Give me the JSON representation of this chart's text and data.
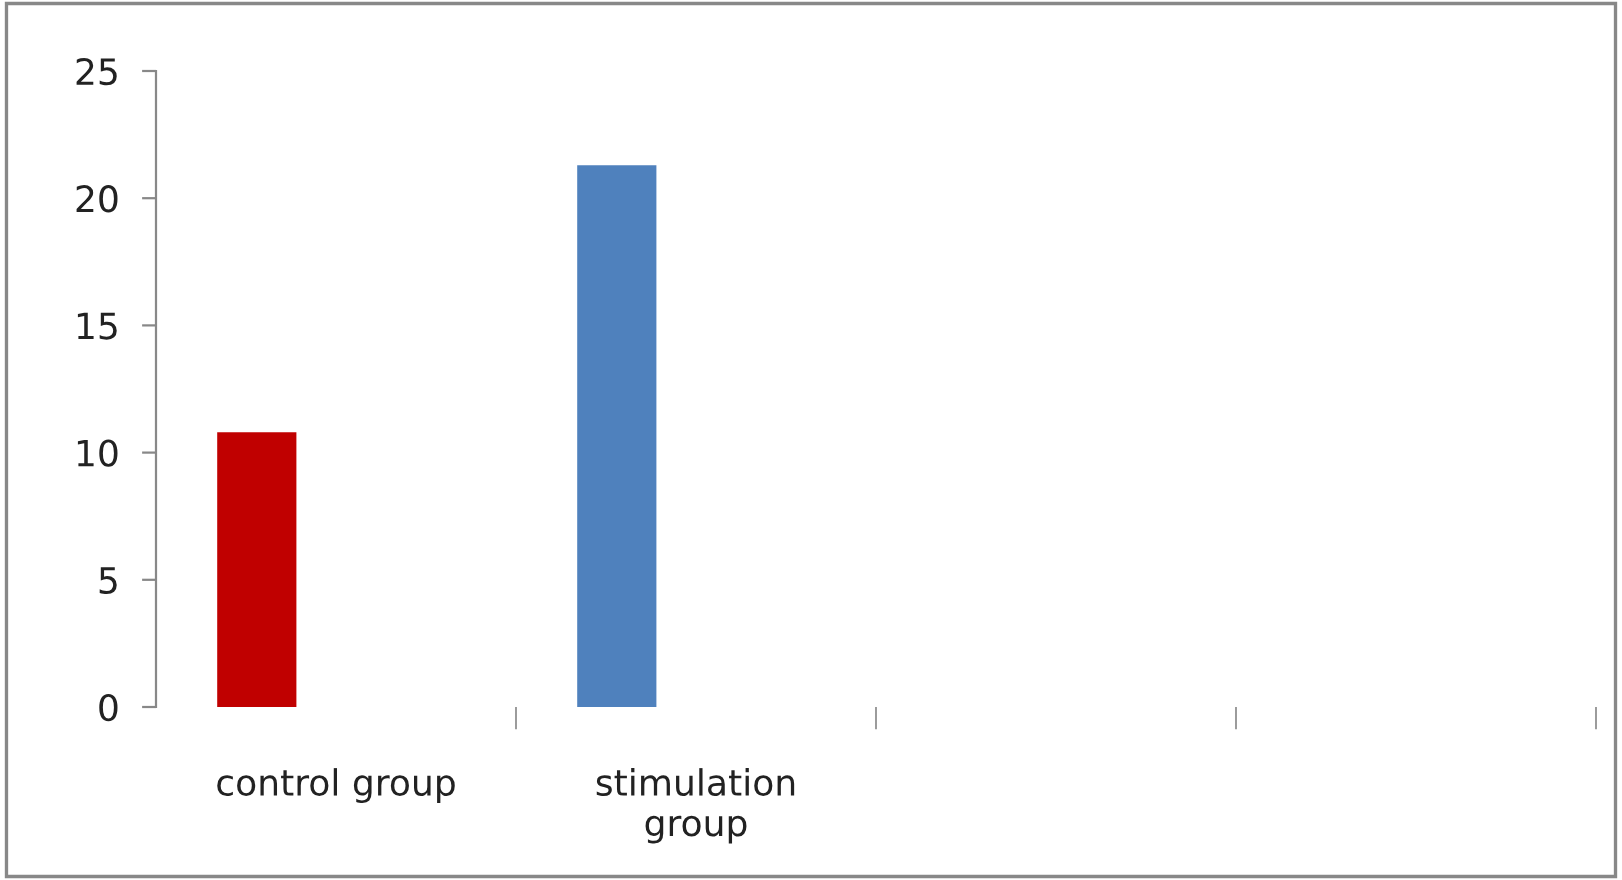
{
  "chart_data": {
    "type": "bar",
    "categories": [
      "control group",
      "stimulation\ngroup",
      null,
      null
    ],
    "values": [
      10.8,
      21.3,
      null,
      null
    ],
    "colors": [
      "#c00000",
      "#4f81bd",
      null,
      null
    ],
    "ylim": [
      0,
      25
    ],
    "yticks": [
      0,
      5,
      10,
      15,
      20,
      25
    ],
    "grid": false,
    "legend": false
  }
}
